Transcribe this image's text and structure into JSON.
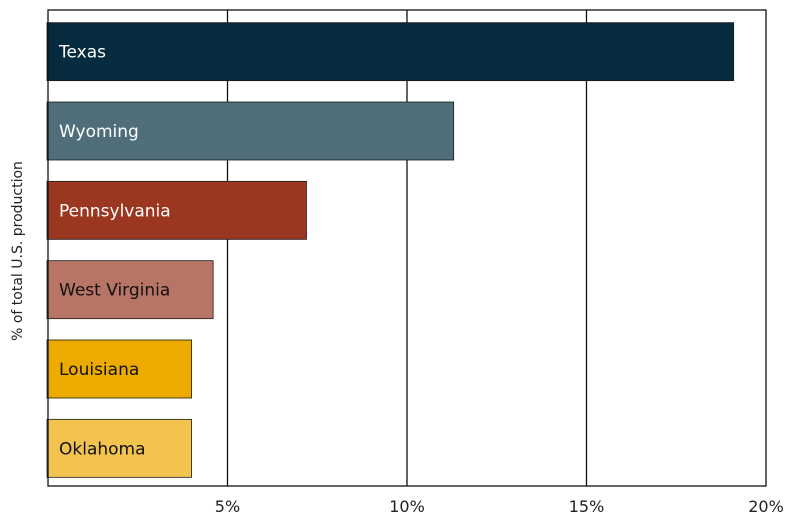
{
  "chart_data": {
    "type": "bar",
    "orientation": "horizontal",
    "categories": [
      "Texas",
      "Wyoming",
      "Pennsylvania",
      "West Virginia",
      "Louisiana",
      "Oklahoma"
    ],
    "values": [
      19.1,
      11.3,
      7.2,
      4.6,
      4.0,
      4.0
    ],
    "bar_colors": [
      "#062a3e",
      "#4f6e7a",
      "#9b3720",
      "#b87565",
      "#edab00",
      "#f3c350"
    ],
    "label_colors": [
      "#ffffff",
      "#ffffff",
      "#ffffff",
      "#111111",
      "#111111",
      "#111111"
    ],
    "xlim": [
      0,
      20
    ],
    "xticks": [
      5,
      10,
      15,
      20
    ],
    "xtick_labels": [
      "5%",
      "10%",
      "15%",
      "20%"
    ],
    "ylabel": "% of total U.S. production",
    "grid": "vertical"
  }
}
